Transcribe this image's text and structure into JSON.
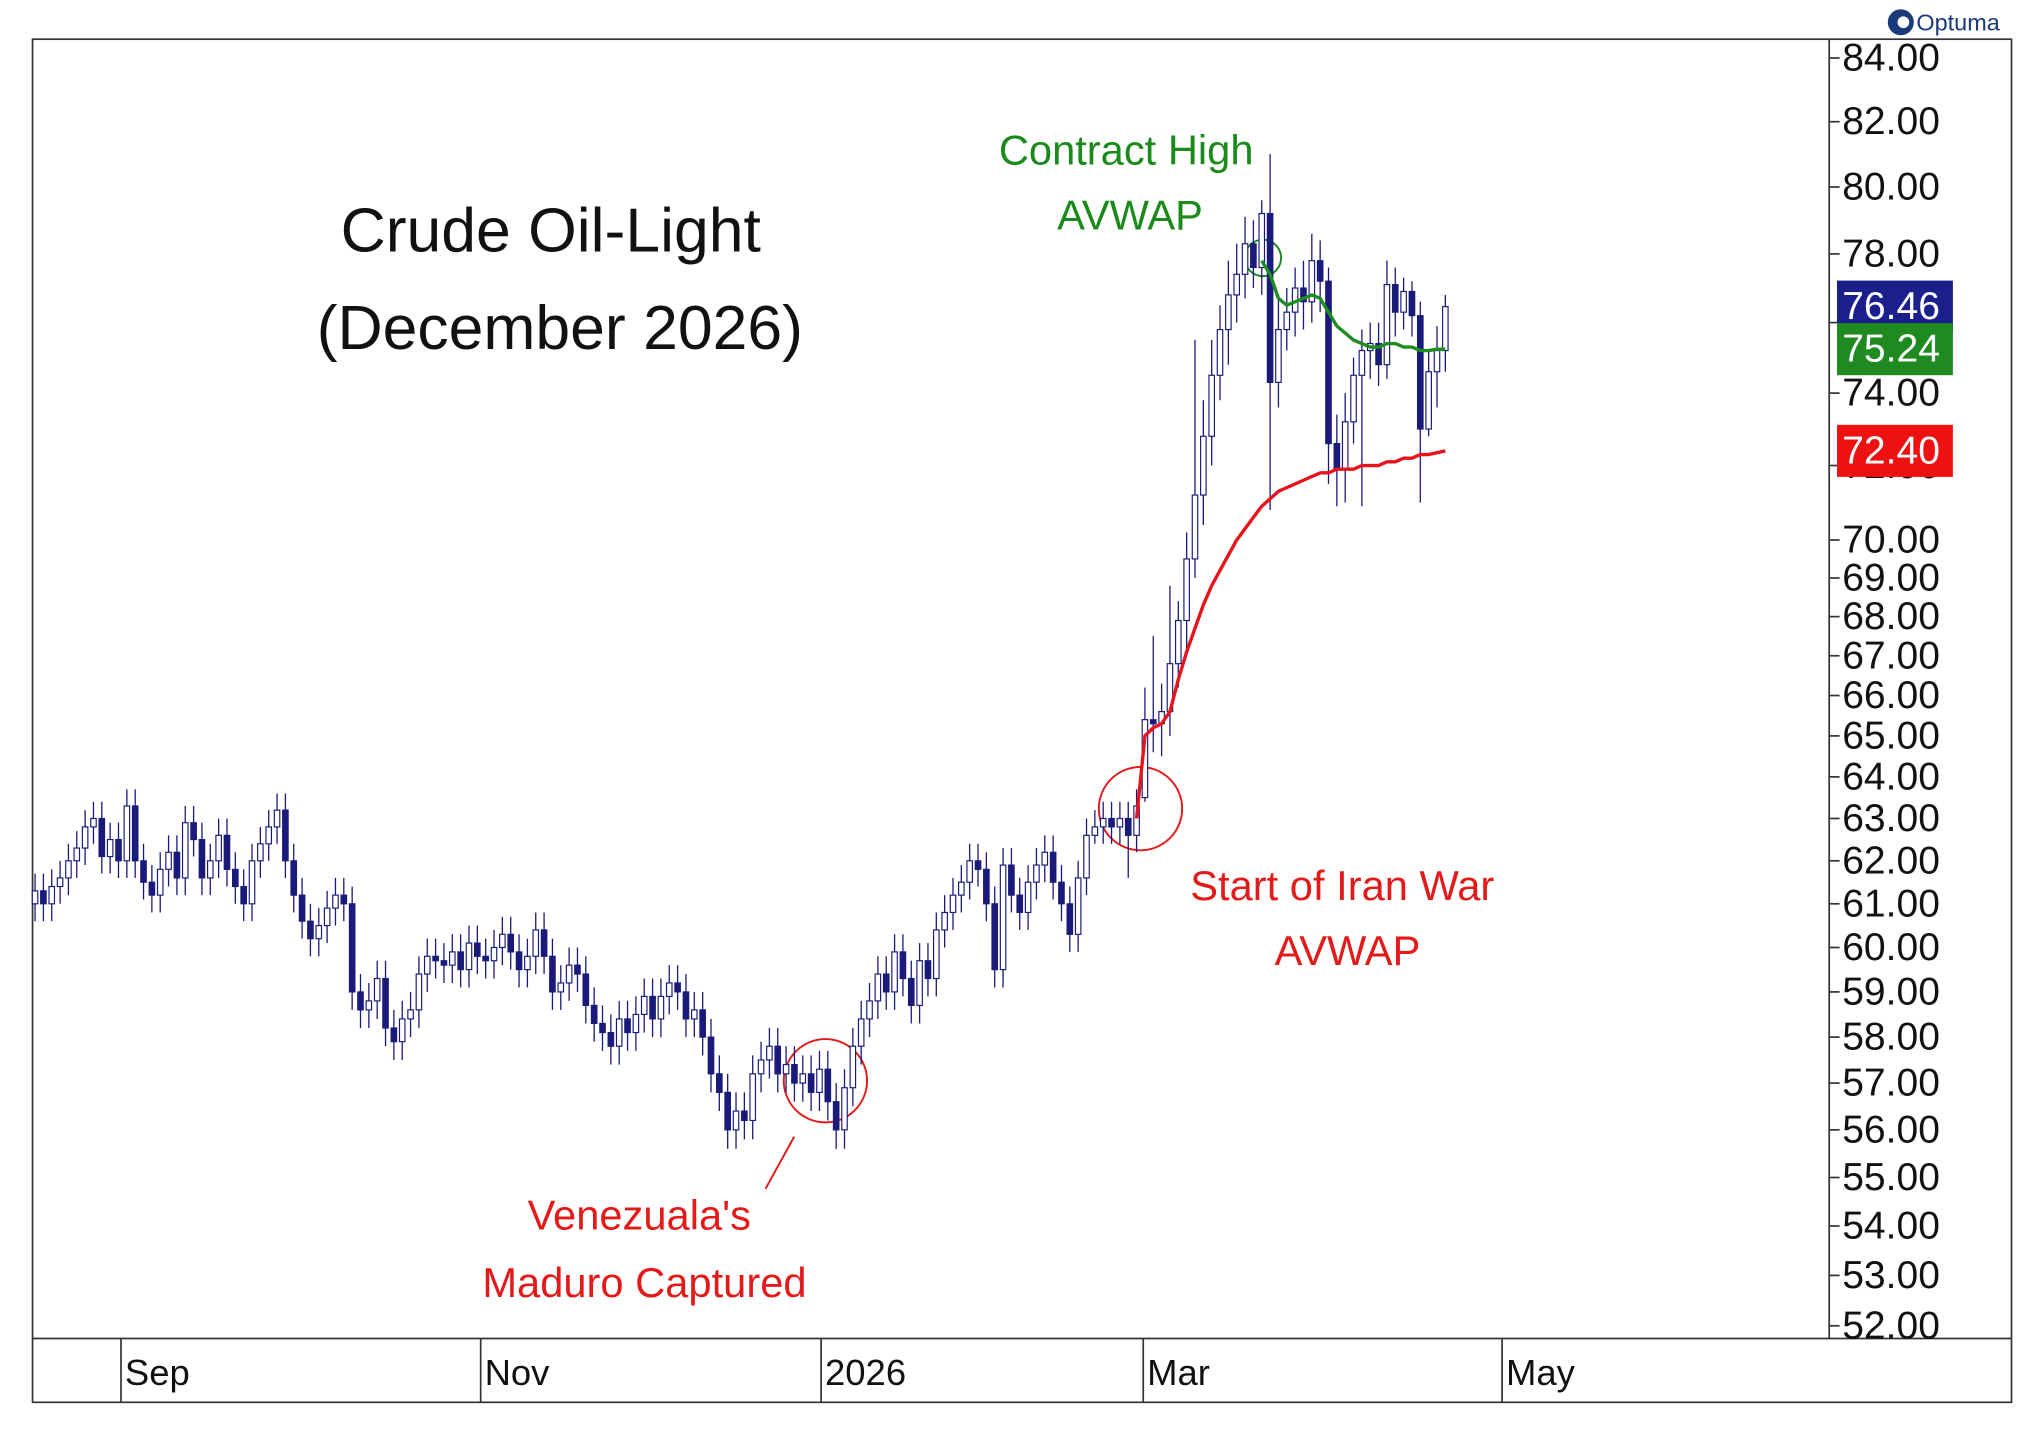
{
  "chart_data": {
    "type": "candlestick",
    "title": "Crude Oil-Light",
    "subtitle": "(December 2026)",
    "logo": "Optuma",
    "candle_color": "#1a1a7a",
    "log_scale": true,
    "ylim": [
      51.75,
      84.6
    ],
    "xlim": [
      -0.3,
      215
    ],
    "yticks": [
      {
        "value": 52,
        "label": "52.00"
      },
      {
        "value": 53,
        "label": "53.00"
      },
      {
        "value": 54,
        "label": "54.00"
      },
      {
        "value": 55,
        "label": "55.00"
      },
      {
        "value": 56,
        "label": "56.00"
      },
      {
        "value": 57,
        "label": "57.00"
      },
      {
        "value": 58,
        "label": "58.00"
      },
      {
        "value": 59,
        "label": "59.00"
      },
      {
        "value": 60,
        "label": "60.00"
      },
      {
        "value": 61,
        "label": "61.00"
      },
      {
        "value": 62,
        "label": "62.00"
      },
      {
        "value": 63,
        "label": "63.00"
      },
      {
        "value": 64,
        "label": "64.00"
      },
      {
        "value": 65,
        "label": "65.00"
      },
      {
        "value": 66,
        "label": "66.00"
      },
      {
        "value": 67,
        "label": "67.00"
      },
      {
        "value": 68,
        "label": "68.00"
      },
      {
        "value": 69,
        "label": "69.00"
      },
      {
        "value": 70,
        "label": "70.00"
      },
      {
        "value": 72,
        "label": "72.00"
      },
      {
        "value": 74,
        "label": "74.00"
      },
      {
        "value": 76,
        "label": "76.00"
      },
      {
        "value": 78,
        "label": "78.00"
      },
      {
        "value": 80,
        "label": "80.00"
      },
      {
        "value": 82,
        "label": "82.00"
      },
      {
        "value": 84,
        "label": "84.00"
      }
    ],
    "xticks": [
      {
        "value": 10.3,
        "label": "Sep"
      },
      {
        "value": 53.4,
        "label": "Nov"
      },
      {
        "value": 94.2,
        "label": "2026"
      },
      {
        "value": 132.8,
        "label": "Mar"
      },
      {
        "value": 175.8,
        "label": "May"
      }
    ],
    "open": [
      61.0,
      61.3,
      61.0,
      61.4,
      61.6,
      62.0,
      62.3,
      62.8,
      63.0,
      62.1,
      62.5,
      62.0,
      63.3,
      62.0,
      61.5,
      61.2,
      61.8,
      62.2,
      61.6,
      62.9,
      62.5,
      61.6,
      62.0,
      62.6,
      61.8,
      61.4,
      61.0,
      62.0,
      62.4,
      62.8,
      63.2,
      62.0,
      61.2,
      60.6,
      60.2,
      60.5,
      60.9,
      61.2,
      61.0,
      59.0,
      58.6,
      58.8,
      59.3,
      58.2,
      57.9,
      58.4,
      58.6,
      59.4,
      59.8,
      59.7,
      59.6,
      59.9,
      59.5,
      60.1,
      59.8,
      59.7,
      60.0,
      60.3,
      59.9,
      59.5,
      59.8,
      60.4,
      59.8,
      59.0,
      59.2,
      59.6,
      59.4,
      58.7,
      58.3,
      58.1,
      57.8,
      58.4,
      58.1,
      58.5,
      58.9,
      58.4,
      58.9,
      59.2,
      59.0,
      58.4,
      58.6,
      58.0,
      57.2,
      56.8,
      56.0,
      56.4,
      56.2,
      57.2,
      57.5,
      57.8,
      57.2,
      57.4,
      57.0,
      57.2,
      56.8,
      57.3,
      56.6,
      56.0,
      56.9,
      57.8,
      58.4,
      58.8,
      59.4,
      59.0,
      59.9,
      59.3,
      58.7,
      59.7,
      59.3,
      60.4,
      60.8,
      61.2,
      61.5,
      62.0,
      61.8,
      61.0,
      59.5,
      61.9,
      61.2,
      60.8,
      61.5,
      61.9,
      62.2,
      61.5,
      61.0,
      60.3,
      61.6,
      62.6,
      62.8,
      63.0,
      62.8,
      63.0,
      62.6,
      63.5,
      65.4,
      65.3,
      65.6,
      66.8,
      67.9,
      69.5,
      71.2,
      72.8,
      74.5,
      75.8,
      76.8,
      77.4,
      78.3,
      77.6,
      79.2,
      74.3,
      75.8,
      76.3,
      77.0,
      76.6,
      77.8,
      77.2,
      72.6,
      71.9,
      73.2,
      74.5,
      75.2,
      75.4,
      74.8,
      77.1,
      76.3,
      76.9,
      76.2,
      73.0,
      74.6,
      75.2
    ],
    "high": [
      61.7,
      61.7,
      61.8,
      62.0,
      62.4,
      62.7,
      63.2,
      63.4,
      63.4,
      62.9,
      62.9,
      63.7,
      63.7,
      62.4,
      61.9,
      62.2,
      62.6,
      62.6,
      63.3,
      63.3,
      62.9,
      62.4,
      63.0,
      63.0,
      62.2,
      61.8,
      62.4,
      62.8,
      63.2,
      63.6,
      63.6,
      62.4,
      61.6,
      61.0,
      60.9,
      61.3,
      61.6,
      61.6,
      61.4,
      59.4,
      59.2,
      59.7,
      59.7,
      58.6,
      58.8,
      59.0,
      59.8,
      60.2,
      60.2,
      60.1,
      60.3,
      60.3,
      60.5,
      60.5,
      60.2,
      60.4,
      60.7,
      60.7,
      60.3,
      60.2,
      60.8,
      60.8,
      60.2,
      59.6,
      60.0,
      60.0,
      59.8,
      59.1,
      58.7,
      58.5,
      58.8,
      58.8,
      58.9,
      59.3,
      59.3,
      59.3,
      59.6,
      59.6,
      59.4,
      59.0,
      59.0,
      58.4,
      57.6,
      57.2,
      56.8,
      56.8,
      57.6,
      57.9,
      58.2,
      58.2,
      57.8,
      57.8,
      57.6,
      57.6,
      57.7,
      57.7,
      57.0,
      57.3,
      58.2,
      58.8,
      59.2,
      59.8,
      59.8,
      60.3,
      60.3,
      59.7,
      60.1,
      60.1,
      60.8,
      61.2,
      61.6,
      61.9,
      62.4,
      62.4,
      62.2,
      61.4,
      62.3,
      62.3,
      61.6,
      61.9,
      62.3,
      62.6,
      62.6,
      61.9,
      61.4,
      62.0,
      63.0,
      63.2,
      63.4,
      63.4,
      63.4,
      63.4,
      63.7,
      66.2,
      67.5,
      66.3,
      68.8,
      68.4,
      70.2,
      75.5,
      73.8,
      75.5,
      76.5,
      77.8,
      78.3,
      79.1,
      79.0,
      79.6,
      81.0,
      76.8,
      77.0,
      77.6,
      77.8,
      78.6,
      78.4,
      77.6,
      73.4,
      74.0,
      75.0,
      75.8,
      76.0,
      76.0,
      77.8,
      77.6,
      77.3,
      77.2,
      76.6,
      75.2,
      75.9,
      76.8
    ],
    "low": [
      60.6,
      60.6,
      60.6,
      61.0,
      61.2,
      61.6,
      61.9,
      62.4,
      61.7,
      61.7,
      61.6,
      61.6,
      61.6,
      61.1,
      60.8,
      60.8,
      61.4,
      61.2,
      61.2,
      62.1,
      61.2,
      61.2,
      61.6,
      61.4,
      61.0,
      60.6,
      60.6,
      61.6,
      62.0,
      62.4,
      61.6,
      60.8,
      60.2,
      59.8,
      59.8,
      60.1,
      60.5,
      60.6,
      58.6,
      58.2,
      58.2,
      58.4,
      57.8,
      57.5,
      57.5,
      58.0,
      58.2,
      59.0,
      59.3,
      59.2,
      59.2,
      59.1,
      59.1,
      59.4,
      59.3,
      59.3,
      59.6,
      59.5,
      59.1,
      59.1,
      59.4,
      59.4,
      58.6,
      58.6,
      58.8,
      59.0,
      58.3,
      57.9,
      57.7,
      57.4,
      57.4,
      57.7,
      57.7,
      58.1,
      58.0,
      58.0,
      58.5,
      58.6,
      58.0,
      58.0,
      57.6,
      56.8,
      56.4,
      55.6,
      55.6,
      55.8,
      55.8,
      56.8,
      57.1,
      56.8,
      56.8,
      56.6,
      56.6,
      56.4,
      56.4,
      56.2,
      55.6,
      55.6,
      56.5,
      57.4,
      58.0,
      58.4,
      58.6,
      58.6,
      58.9,
      58.3,
      58.3,
      58.9,
      58.9,
      60.0,
      60.4,
      60.8,
      61.1,
      61.4,
      60.6,
      59.1,
      59.1,
      60.8,
      60.4,
      60.4,
      61.1,
      61.5,
      61.1,
      60.6,
      59.9,
      59.9,
      61.2,
      62.4,
      62.4,
      62.4,
      62.4,
      61.6,
      62.2,
      63.4,
      64.6,
      64.5,
      65.0,
      66.2,
      67.0,
      69.0,
      70.4,
      72.0,
      73.8,
      74.8,
      76.0,
      76.7,
      77.0,
      76.8,
      70.8,
      73.6,
      75.2,
      75.6,
      75.8,
      76.0,
      76.3,
      71.5,
      70.9,
      71.0,
      72.6,
      70.9,
      74.4,
      74.2,
      74.4,
      75.6,
      75.8,
      75.6,
      71.0,
      72.8,
      73.6,
      74.6
    ],
    "close": [
      61.3,
      61.0,
      61.4,
      61.6,
      62.0,
      62.3,
      62.8,
      63.0,
      62.1,
      62.5,
      62.0,
      63.3,
      62.0,
      61.5,
      61.2,
      61.8,
      62.2,
      61.6,
      62.9,
      62.5,
      61.6,
      62.0,
      62.6,
      61.8,
      61.4,
      61.0,
      62.0,
      62.4,
      62.8,
      63.2,
      62.0,
      61.2,
      60.6,
      60.2,
      60.5,
      60.9,
      61.2,
      61.0,
      59.0,
      58.6,
      58.8,
      59.3,
      58.2,
      57.9,
      58.4,
      58.6,
      59.4,
      59.8,
      59.7,
      59.6,
      59.9,
      59.5,
      60.1,
      59.8,
      59.7,
      60.0,
      60.3,
      59.9,
      59.5,
      59.8,
      60.4,
      59.8,
      59.0,
      59.2,
      59.6,
      59.4,
      58.7,
      58.3,
      58.1,
      57.8,
      58.4,
      58.1,
      58.5,
      58.9,
      58.4,
      58.9,
      59.2,
      59.0,
      58.4,
      58.6,
      58.0,
      57.2,
      56.8,
      56.0,
      56.4,
      56.2,
      57.2,
      57.5,
      57.8,
      57.2,
      57.4,
      57.0,
      57.2,
      56.8,
      57.3,
      56.6,
      56.0,
      56.9,
      57.8,
      58.4,
      58.8,
      59.4,
      59.0,
      59.9,
      59.3,
      58.7,
      59.7,
      59.3,
      60.4,
      60.8,
      61.2,
      61.5,
      62.0,
      61.8,
      61.0,
      59.5,
      61.9,
      61.2,
      60.8,
      61.5,
      61.9,
      62.2,
      61.5,
      61.0,
      60.3,
      61.6,
      62.6,
      62.8,
      63.0,
      62.8,
      63.0,
      62.6,
      63.3,
      65.4,
      65.3,
      65.6,
      66.8,
      67.9,
      69.5,
      71.2,
      72.8,
      74.5,
      75.8,
      76.8,
      77.4,
      78.3,
      77.6,
      79.2,
      74.3,
      75.8,
      76.3,
      77.0,
      76.6,
      77.8,
      77.2,
      72.6,
      71.9,
      73.2,
      74.5,
      75.2,
      75.4,
      74.8,
      77.1,
      76.3,
      76.9,
      76.2,
      73.0,
      74.6,
      75.2,
      76.46
    ],
    "lines": [
      {
        "color": "#e8141b",
        "values": [
          null,
          null,
          null,
          null,
          null,
          null,
          null,
          null,
          null,
          null,
          null,
          null,
          null,
          null,
          null,
          null,
          null,
          null,
          null,
          null,
          null,
          null,
          null,
          null,
          null,
          null,
          null,
          null,
          null,
          null,
          null,
          null,
          null,
          null,
          null,
          null,
          null,
          null,
          null,
          null,
          null,
          null,
          null,
          null,
          null,
          null,
          null,
          null,
          null,
          null,
          null,
          null,
          null,
          null,
          null,
          null,
          null,
          null,
          null,
          null,
          null,
          null,
          null,
          null,
          null,
          null,
          null,
          null,
          null,
          null,
          null,
          null,
          null,
          null,
          null,
          null,
          null,
          null,
          null,
          null,
          null,
          null,
          null,
          null,
          null,
          null,
          null,
          null,
          null,
          null,
          null,
          null,
          null,
          null,
          null,
          null,
          null,
          null,
          null,
          null,
          null,
          null,
          null,
          null,
          null,
          null,
          null,
          null,
          null,
          null,
          null,
          null,
          null,
          null,
          null,
          null,
          null,
          null,
          null,
          null,
          null,
          null,
          null,
          null,
          null,
          null,
          null,
          null,
          null,
          null,
          null,
          null,
          63.0,
          65.0,
          65.2,
          65.3,
          65.6,
          66.4,
          67.1,
          67.7,
          68.3,
          68.8,
          69.2,
          69.6,
          70.0,
          70.3,
          70.6,
          70.9,
          71.1,
          71.3,
          71.4,
          71.5,
          71.6,
          71.7,
          71.8,
          71.8,
          71.9,
          71.9,
          71.9,
          72.0,
          72.0,
          72.0,
          72.1,
          72.1,
          72.2,
          72.2,
          72.3,
          72.3,
          72.35,
          72.4
        ]
      },
      {
        "color": "#1e8c1e",
        "values": [
          null,
          null,
          null,
          null,
          null,
          null,
          null,
          null,
          null,
          null,
          null,
          null,
          null,
          null,
          null,
          null,
          null,
          null,
          null,
          null,
          null,
          null,
          null,
          null,
          null,
          null,
          null,
          null,
          null,
          null,
          null,
          null,
          null,
          null,
          null,
          null,
          null,
          null,
          null,
          null,
          null,
          null,
          null,
          null,
          null,
          null,
          null,
          null,
          null,
          null,
          null,
          null,
          null,
          null,
          null,
          null,
          null,
          null,
          null,
          null,
          null,
          null,
          null,
          null,
          null,
          null,
          null,
          null,
          null,
          null,
          null,
          null,
          null,
          null,
          null,
          null,
          null,
          null,
          null,
          null,
          null,
          null,
          null,
          null,
          null,
          null,
          null,
          null,
          null,
          null,
          null,
          null,
          null,
          null,
          null,
          null,
          null,
          null,
          null,
          null,
          null,
          null,
          null,
          null,
          null,
          null,
          null,
          null,
          null,
          null,
          null,
          null,
          null,
          null,
          null,
          null,
          null,
          null,
          null,
          null,
          null,
          null,
          null,
          null,
          null,
          null,
          null,
          null,
          null,
          null,
          null,
          null,
          null,
          null,
          null,
          null,
          null,
          null,
          null,
          null,
          null,
          null,
          null,
          null,
          null,
          null,
          null,
          77.8,
          77.4,
          76.7,
          76.5,
          76.6,
          76.7,
          76.8,
          76.7,
          76.3,
          75.9,
          75.7,
          75.5,
          75.4,
          75.3,
          75.3,
          75.4,
          75.4,
          75.3,
          75.3,
          75.2,
          75.2,
          75.24,
          75.24
        ]
      }
    ],
    "price_tags": [
      {
        "value": 76.46,
        "color": "#1a1f8c"
      },
      {
        "value": 75.24,
        "color": "#1f8a1f"
      },
      {
        "value": 72.4,
        "label": "72.40",
        "color": "#ee1111"
      }
    ],
    "annotations": [
      {
        "lines": [
          "Contract High",
          "AVWAP"
        ],
        "color": "#1a8a1a"
      },
      {
        "lines": [
          "Start of Iran War",
          "AVWAP"
        ],
        "color": "#e31a1a"
      },
      {
        "lines": [
          "Venezuala's",
          "Maduro Captured"
        ],
        "color": "#e31a1a"
      }
    ]
  }
}
